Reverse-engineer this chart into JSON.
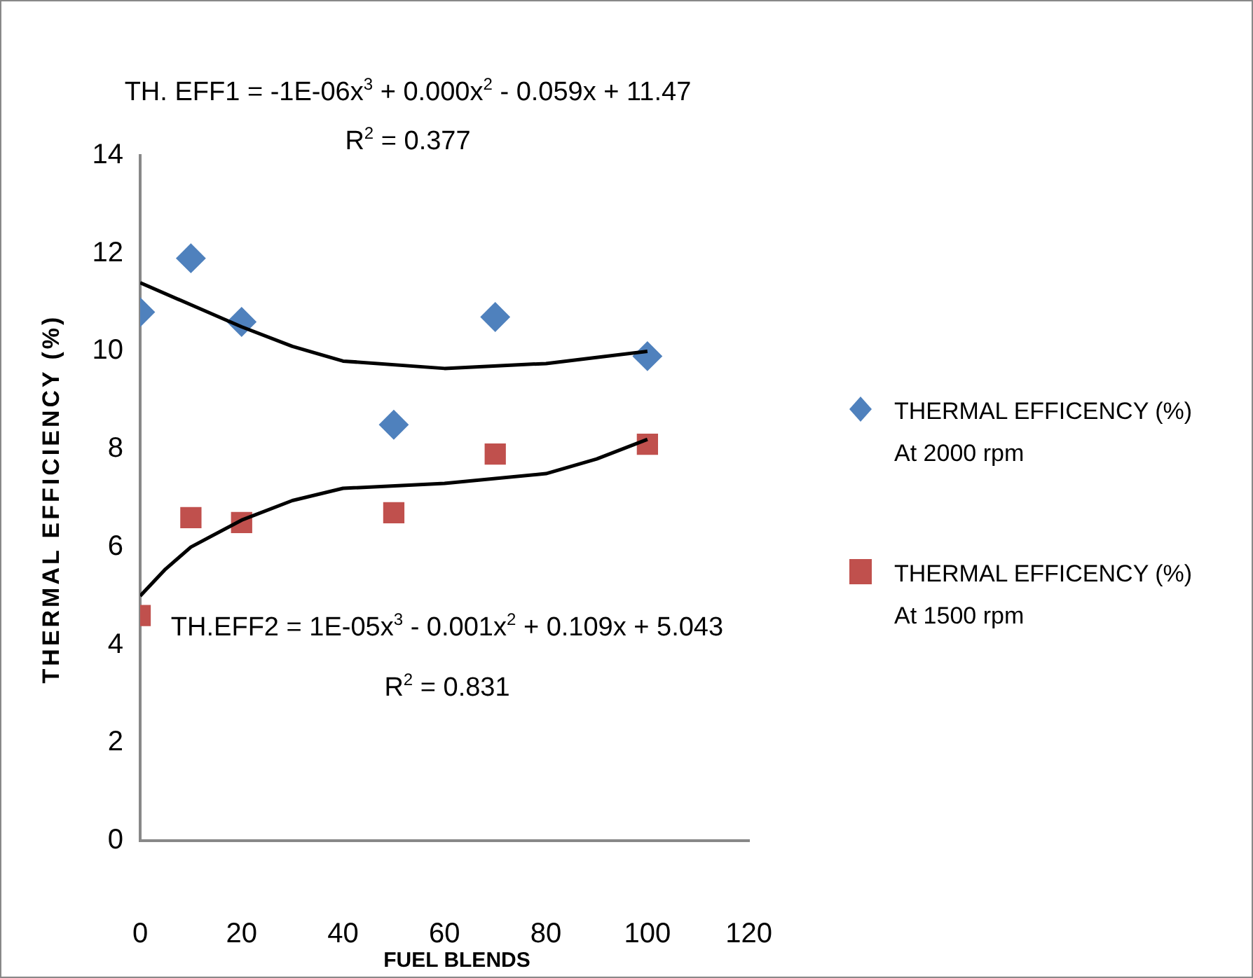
{
  "chart_data": {
    "type": "scatter",
    "xlabel": "FUEL BLENDS",
    "ylabel": "THERMAL EFFICIENCY (%)",
    "x": [
      0,
      10,
      20,
      50,
      70,
      100
    ],
    "xlim": [
      0,
      120
    ],
    "xticks": [
      0,
      20,
      40,
      60,
      80,
      100,
      120
    ],
    "ylim": [
      0,
      14
    ],
    "yticks": [
      0,
      2,
      4,
      6,
      8,
      10,
      12,
      14
    ],
    "grid": false,
    "legend": "right",
    "series": [
      {
        "name": "THERMAL EFFICENCY (%) At 2000 rpm",
        "marker": "diamond",
        "color": "#4f81bd",
        "values": [
          10.8,
          11.9,
          10.6,
          8.5,
          10.7,
          9.9
        ]
      },
      {
        "name": "THERMAL EFFICENCY (%) At 1500 rpm",
        "marker": "square",
        "color": "#c0504d",
        "values": [
          4.6,
          6.6,
          6.5,
          6.7,
          7.9,
          8.1
        ]
      },
      {
        "type": "line",
        "marker": "none",
        "color": "#000000",
        "x": [
          0,
          10,
          20,
          30,
          40,
          60,
          80,
          100
        ],
        "values": [
          11.4,
          10.95,
          10.5,
          10.1,
          9.8,
          9.65,
          9.75,
          10.0
        ]
      },
      {
        "type": "line",
        "marker": "none",
        "color": "#000000",
        "x": [
          0,
          5,
          10,
          20,
          30,
          40,
          60,
          80,
          90,
          100
        ],
        "values": [
          5.0,
          5.55,
          6.0,
          6.55,
          6.95,
          7.2,
          7.3,
          7.5,
          7.8,
          8.2
        ]
      }
    ],
    "annotations": [
      "TH. EFF1 = -1E-06x$^{3}$ + 0.000x$^{2}$ - 0.059x + 11.47",
      "R$^{2}$ = 0.377",
      "TH.EFF2 = 1E-05x$^{3}$ - 0.001x$^{2}$ + 0.109x + 5.043",
      "R$^{2}$ = 0.831"
    ]
  }
}
